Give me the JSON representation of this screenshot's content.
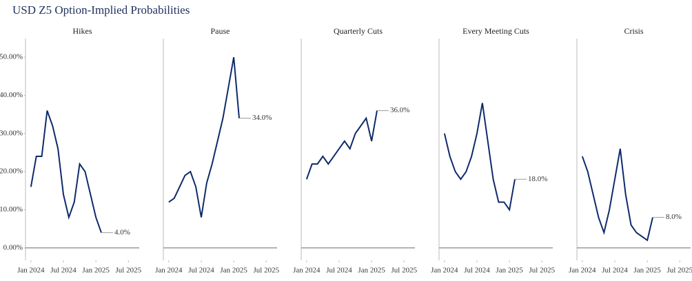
{
  "title": "USD Z5 Option-Implied Probabilities",
  "chart_data": [
    {
      "type": "line",
      "title": "Hikes",
      "color": "#0d2a6b",
      "x": [
        "2024-01",
        "2024-02",
        "2024-03",
        "2024-04",
        "2024-05",
        "2024-06",
        "2024-07",
        "2024-08",
        "2024-09",
        "2024-10",
        "2024-11",
        "2024-12",
        "2025-01",
        "2025-02"
      ],
      "values": [
        16,
        24,
        24,
        36,
        32,
        26,
        14,
        8,
        12,
        22,
        20,
        14,
        8,
        4
      ],
      "value_labels": [
        null,
        null,
        null,
        null,
        null,
        null,
        null,
        null,
        null,
        null,
        null,
        null,
        null,
        "4.0%"
      ],
      "xlim": [
        "2023-12",
        "2025-09"
      ],
      "xticks": [
        {
          "value": "2024-01",
          "label": "Jan 2024"
        },
        {
          "value": "2024-07",
          "label": "Jul 2024"
        },
        {
          "value": "2025-01",
          "label": "Jan 2025"
        },
        {
          "value": "2025-07",
          "label": "Jul 2025"
        }
      ],
      "ylim": [
        -2,
        52
      ],
      "yticks": [
        {
          "value": 0,
          "label": "0.00%"
        },
        {
          "value": 10,
          "label": "10.00%"
        },
        {
          "value": 20,
          "label": "20.00%"
        },
        {
          "value": 30,
          "label": "30.00%"
        },
        {
          "value": 40,
          "label": "40.00%"
        },
        {
          "value": 50,
          "label": "50.00%"
        }
      ]
    },
    {
      "type": "line",
      "title": "Pause",
      "color": "#0d2a6b",
      "x": [
        "2024-01",
        "2024-02",
        "2024-03",
        "2024-04",
        "2024-05",
        "2024-06",
        "2024-07",
        "2024-08",
        "2024-09",
        "2024-10",
        "2024-11",
        "2024-12",
        "2025-01",
        "2025-02"
      ],
      "values": [
        12,
        13,
        16,
        19,
        20,
        16,
        8,
        17,
        22,
        28,
        34,
        42,
        50,
        34
      ],
      "value_labels": [
        null,
        null,
        null,
        null,
        null,
        null,
        null,
        null,
        null,
        null,
        null,
        null,
        null,
        "34.0%"
      ],
      "xlim": [
        "2023-12",
        "2025-09"
      ],
      "xticks": [
        {
          "value": "2024-01",
          "label": "Jan 2024"
        },
        {
          "value": "2024-07",
          "label": "Jul 2024"
        },
        {
          "value": "2025-01",
          "label": "Jan 2025"
        },
        {
          "value": "2025-07",
          "label": "Jul 2025"
        }
      ],
      "ylim": [
        -2,
        52
      ]
    },
    {
      "type": "line",
      "title": "Quarterly Cuts",
      "color": "#0d2a6b",
      "x": [
        "2024-01",
        "2024-02",
        "2024-03",
        "2024-04",
        "2024-05",
        "2024-06",
        "2024-07",
        "2024-08",
        "2024-09",
        "2024-10",
        "2024-11",
        "2024-12",
        "2025-01",
        "2025-02"
      ],
      "values": [
        18,
        22,
        22,
        24,
        22,
        24,
        26,
        28,
        26,
        30,
        32,
        34,
        28,
        36
      ],
      "value_labels": [
        null,
        null,
        null,
        null,
        null,
        null,
        null,
        null,
        null,
        null,
        null,
        null,
        null,
        "36.0%"
      ],
      "xlim": [
        "2023-12",
        "2025-09"
      ],
      "xticks": [
        {
          "value": "2024-01",
          "label": "Jan 2024"
        },
        {
          "value": "2024-07",
          "label": "Jul 2024"
        },
        {
          "value": "2025-01",
          "label": "Jan 2025"
        },
        {
          "value": "2025-07",
          "label": "Jul 2025"
        }
      ],
      "ylim": [
        -2,
        52
      ]
    },
    {
      "type": "line",
      "title": "Every Meeting Cuts",
      "color": "#0d2a6b",
      "x": [
        "2024-01",
        "2024-02",
        "2024-03",
        "2024-04",
        "2024-05",
        "2024-06",
        "2024-07",
        "2024-08",
        "2024-09",
        "2024-10",
        "2024-11",
        "2024-12",
        "2025-01",
        "2025-02"
      ],
      "values": [
        30,
        24,
        20,
        18,
        20,
        24,
        30,
        38,
        28,
        18,
        12,
        12,
        10,
        18
      ],
      "value_labels": [
        null,
        null,
        null,
        null,
        null,
        null,
        null,
        null,
        null,
        null,
        null,
        null,
        null,
        "18.0%"
      ],
      "xlim": [
        "2023-12",
        "2025-09"
      ],
      "xticks": [
        {
          "value": "2024-01",
          "label": "Jan 2024"
        },
        {
          "value": "2024-07",
          "label": "Jul 2024"
        },
        {
          "value": "2025-01",
          "label": "Jan 2025"
        },
        {
          "value": "2025-07",
          "label": "Jul 2025"
        }
      ],
      "ylim": [
        -2,
        52
      ]
    },
    {
      "type": "line",
      "title": "Crisis",
      "color": "#0d2a6b",
      "x": [
        "2024-01",
        "2024-02",
        "2024-03",
        "2024-04",
        "2024-05",
        "2024-06",
        "2024-07",
        "2024-08",
        "2024-09",
        "2024-10",
        "2024-11",
        "2024-12",
        "2025-01",
        "2025-02"
      ],
      "values": [
        24,
        20,
        14,
        8,
        4,
        10,
        18,
        26,
        14,
        6,
        4,
        3,
        2,
        8
      ],
      "value_labels": [
        null,
        null,
        null,
        null,
        null,
        null,
        null,
        null,
        null,
        null,
        null,
        null,
        null,
        "8.0%"
      ],
      "xlim": [
        "2023-12",
        "2025-09"
      ],
      "xticks": [
        {
          "value": "2024-01",
          "label": "Jan 2024"
        },
        {
          "value": "2024-07",
          "label": "Jul 2024"
        },
        {
          "value": "2025-01",
          "label": "Jan 2025"
        },
        {
          "value": "2025-07",
          "label": "Jul 2025"
        }
      ],
      "ylim": [
        -2,
        52
      ]
    }
  ]
}
